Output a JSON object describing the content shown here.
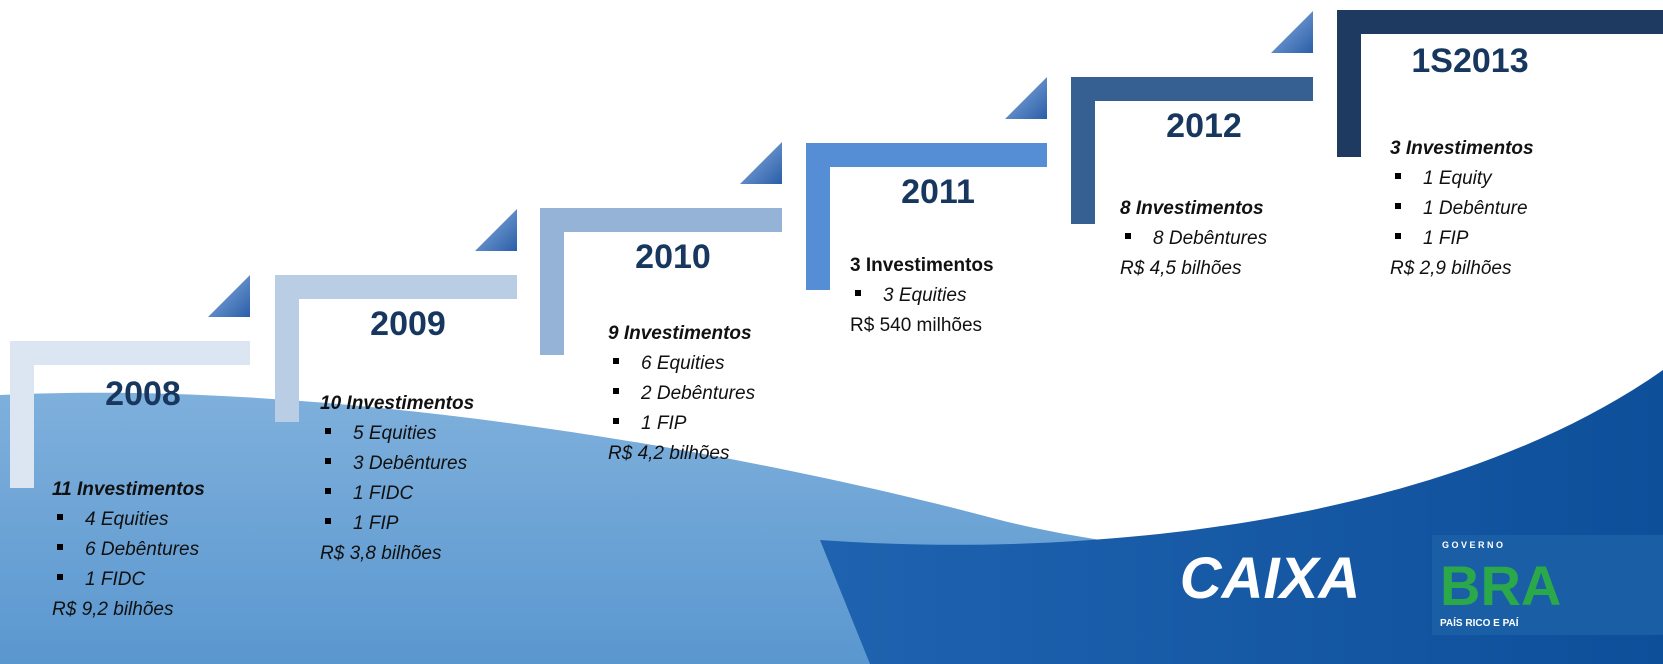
{
  "steps": [
    {
      "year": "2008",
      "heading": "11 Investimentos",
      "items": [
        "4 Equities",
        "6 Debêntures",
        "1 FIDC"
      ],
      "total": "R$ 9,2 bilhões"
    },
    {
      "year": "2009",
      "heading": "10 Investimentos",
      "items": [
        "5 Equities",
        "3 Debêntures",
        "1 FIDC",
        "1 FIP"
      ],
      "total": "R$ 3,8 bilhões"
    },
    {
      "year": "2010",
      "heading": "9 Investimentos",
      "items": [
        "6 Equities",
        "2 Debêntures",
        "1 FIP"
      ],
      "total": "R$ 4,2 bilhões"
    },
    {
      "year": "2011",
      "heading": "3 Investimentos",
      "items": [
        "3 Equities"
      ],
      "total": "R$ 540 milhões"
    },
    {
      "year": "2012",
      "heading": "8 Investimentos",
      "items": [
        "8 Debêntures"
      ],
      "total": "R$ 4,5 bilhões"
    },
    {
      "year": "1S2013",
      "heading": "3 Investimentos",
      "items": [
        "1 Equity",
        "1 Debênture",
        "1 FIP"
      ],
      "total": "R$ 2,9 bilhões"
    }
  ],
  "logos": {
    "caixa": "CAIXA",
    "governo": "G O V E R N O",
    "brasil": "BRA",
    "slogan": "PAÍS RICO E PAÍ"
  }
}
